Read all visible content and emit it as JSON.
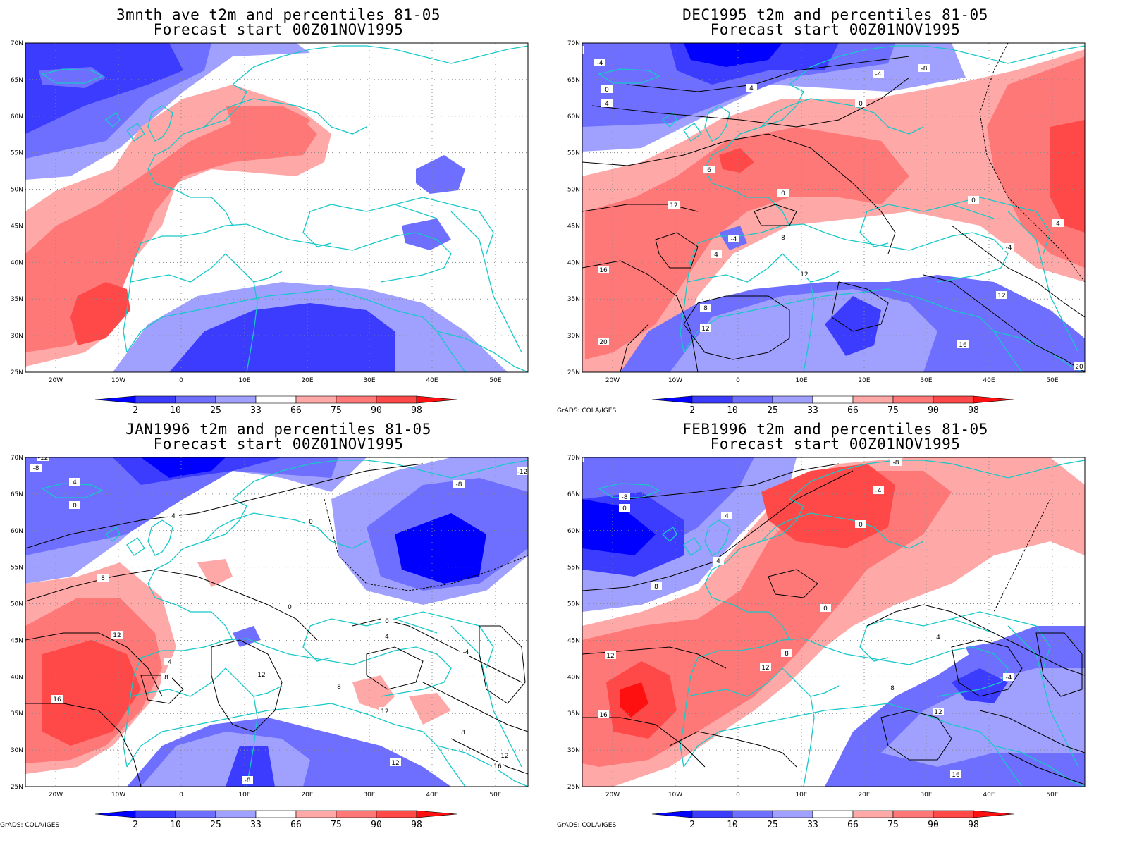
{
  "panels": [
    {
      "title1": "3mnth_ave t2m and percentiles 81-05",
      "title2": "Forecast start 00Z01NOV1995",
      "credit": ""
    },
    {
      "title1": "DEC1995 t2m and percentiles 81-05",
      "title2": "Forecast start 00Z01NOV1995",
      "credit": "GrADS: COLA/IGES"
    },
    {
      "title1": "JAN1996 t2m and percentiles 81-05",
      "title2": "Forecast start 00Z01NOV1995",
      "credit": "GrADS: COLA/IGES"
    },
    {
      "title1": "FEB1996 t2m and percentiles 81-05",
      "title2": "Forecast start 00Z01NOV1995",
      "credit": "GrADS: COLA/IGES"
    }
  ],
  "lat_labels": [
    "70N",
    "65N",
    "60N",
    "55N",
    "50N",
    "45N",
    "40N",
    "35N",
    "30N",
    "25N"
  ],
  "lon_labels": [
    "20W",
    "10W",
    "0",
    "10E",
    "20E",
    "30E",
    "40E",
    "50E"
  ],
  "colorbar": {
    "labels": [
      "2",
      "10",
      "25",
      "33",
      "66",
      "75",
      "90",
      "98"
    ],
    "colors": [
      "#0000ff",
      "#3c3cff",
      "#6e6eff",
      "#a0a0ff",
      "#ffffff",
      "#ffa8a8",
      "#ff7878",
      "#ff4848",
      "#ff1010"
    ]
  },
  "contour_labels": {
    "dec": [
      "-8",
      "-4",
      "0",
      "4",
      "-4",
      "-8",
      "4",
      "0",
      "6",
      "12",
      "0",
      "16",
      "20",
      "-4",
      "4",
      "8",
      "12",
      "8",
      "12",
      "0",
      "4",
      "-4",
      "12",
      "16",
      "20"
    ],
    "jan": [
      "-12",
      "-8",
      "-8",
      "4",
      "0",
      "4",
      "0",
      "8",
      "0",
      "12",
      "16",
      "4",
      "8",
      "12",
      "8",
      "12",
      "12",
      "16",
      "-8",
      "-12",
      "0",
      "4",
      "-4",
      "8",
      "12",
      "16"
    ],
    "feb": [
      "-8",
      "-8",
      "0",
      "4",
      "4",
      "-8",
      "-4",
      "0",
      "8",
      "12",
      "16",
      "8",
      "12",
      "0",
      "4",
      "-4",
      "8",
      "12",
      "16"
    ]
  },
  "colors": {
    "coast": "#18c8c8",
    "contour": "#000000"
  }
}
